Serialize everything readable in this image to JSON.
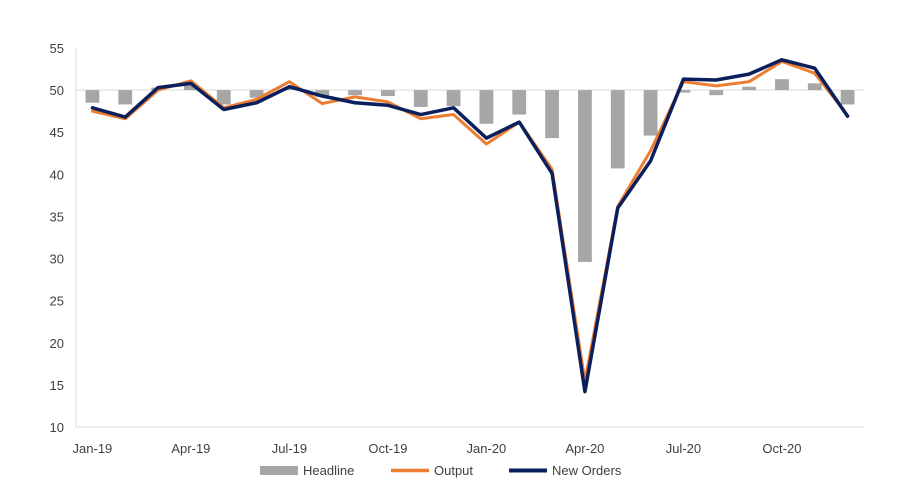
{
  "chart_data": {
    "type": "bar+line",
    "x": [
      "Jan-19",
      "Feb-19",
      "Mar-19",
      "Apr-19",
      "May-19",
      "Jun-19",
      "Jul-19",
      "Aug-19",
      "Sep-19",
      "Oct-19",
      "Nov-19",
      "Dec-19",
      "Jan-20",
      "Feb-20",
      "Mar-20",
      "Apr-20",
      "May-20",
      "Jun-20",
      "Jul-20",
      "Aug-20",
      "Sep-20",
      "Oct-20",
      "Nov-20",
      "Dec-20"
    ],
    "x_tick_labels": [
      "Jan-19",
      "Apr-19",
      "Jul-19",
      "Oct-19",
      "Jan-20",
      "Apr-20",
      "Jul-20",
      "Oct-20"
    ],
    "ylim": [
      10,
      55
    ],
    "y_ticks": [
      10,
      15,
      20,
      25,
      30,
      35,
      40,
      45,
      50,
      55
    ],
    "bar_baseline": 50,
    "grid": false,
    "legend_position": "bottom",
    "series": [
      {
        "name": "Headline",
        "type": "bar",
        "color": "#a6a6a6",
        "values": [
          48.5,
          48.3,
          50.3,
          50.6,
          48.3,
          49.1,
          50.2,
          49.2,
          49.4,
          49.3,
          48.0,
          48.1,
          46.0,
          47.1,
          44.3,
          29.6,
          40.7,
          44.6,
          49.7,
          49.4,
          50.4,
          51.3,
          50.8,
          48.3
        ]
      },
      {
        "name": "Output",
        "type": "line",
        "color": "#ed7d31",
        "values": [
          47.5,
          46.6,
          50.0,
          51.1,
          47.9,
          48.9,
          51.0,
          48.4,
          49.2,
          48.6,
          46.6,
          47.1,
          43.6,
          46.2,
          40.6,
          15.4,
          36.2,
          42.8,
          51.0,
          50.5,
          51.0,
          53.4,
          52.0,
          47.0
        ]
      },
      {
        "name": "New Orders",
        "type": "line",
        "color": "#0b1f5c",
        "values": [
          47.9,
          46.8,
          50.3,
          50.8,
          47.7,
          48.5,
          50.4,
          49.3,
          48.5,
          48.2,
          47.1,
          47.9,
          44.3,
          46.2,
          40.1,
          14.2,
          36.0,
          41.6,
          51.3,
          51.2,
          51.9,
          53.6,
          52.6,
          46.9
        ]
      }
    ]
  }
}
